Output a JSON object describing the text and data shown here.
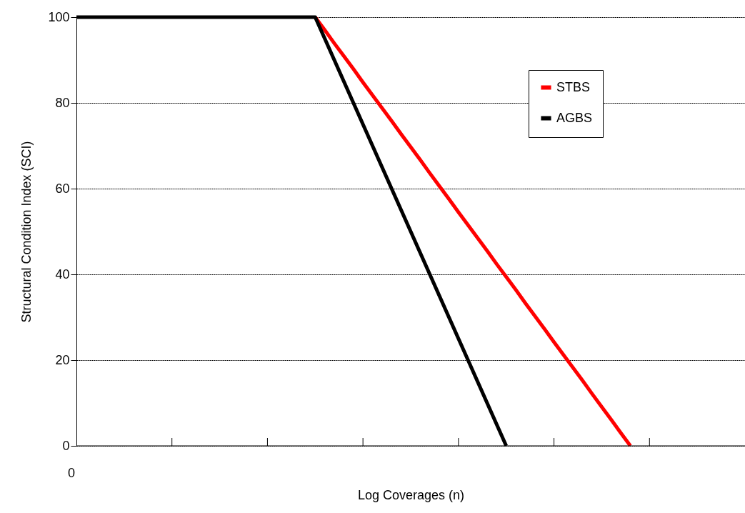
{
  "chart_data": {
    "type": "line",
    "xlabel": "Log Coverages (n)",
    "ylabel": "Structural Condition Index (SCI)",
    "categories": [
      null,
      null,
      null,
      null,
      null,
      null,
      null,
      null,
      null,
      null,
      null,
      null,
      null,
      null,
      null,
      null,
      null,
      null,
      null,
      null,
      null,
      null,
      null,
      null,
      null,
      null,
      null,
      null,
      null,
      null,
      null,
      null,
      null,
      null,
      null,
      null,
      null,
      null,
      null,
      null,
      null,
      null,
      null,
      null,
      null,
      null,
      null,
      null,
      null,
      null,
      null,
      null,
      null,
      null,
      null,
      null,
      null,
      null,
      null,
      null,
      null,
      null,
      null,
      null,
      null,
      null,
      null,
      null,
      null,
      null,
      null
    ],
    "series": [
      {
        "name": "STBS",
        "color": "#ff0000",
        "values": [
          null,
          null,
          null,
          null,
          null,
          null,
          null,
          null,
          null,
          null,
          null,
          null,
          null,
          null,
          null,
          null,
          null,
          null,
          null,
          null,
          null,
          null,
          null,
          null,
          null,
          100,
          97,
          93.9,
          90.9,
          87.9,
          84.8,
          81.8,
          78.8,
          75.8,
          72.7,
          69.7,
          66.7,
          63.6,
          60.6,
          57.6,
          54.5,
          51.5,
          48.5,
          45.5,
          42.4,
          39.4,
          36.4,
          33.3,
          30.3,
          27.3,
          24.2,
          21.2,
          18.2,
          15.2,
          12.1,
          9.1,
          6.1,
          3,
          0,
          null,
          null,
          null,
          null,
          null,
          null,
          null,
          null,
          null,
          null,
          null,
          null
        ]
      },
      {
        "name": "AGBS",
        "color": "#000000",
        "values": [
          100,
          100,
          100,
          100,
          100,
          100,
          100,
          100,
          100,
          100,
          100,
          100,
          100,
          100,
          100,
          100,
          100,
          100,
          100,
          100,
          100,
          100,
          100,
          100,
          100,
          100,
          95,
          90,
          85,
          80,
          75,
          70,
          65,
          60,
          55,
          50,
          45,
          40,
          35,
          30,
          25,
          20,
          15,
          10,
          5,
          0,
          null,
          null,
          null,
          null,
          null,
          null,
          null,
          null,
          null,
          null,
          null,
          null,
          null,
          null,
          null,
          null,
          null,
          null,
          null,
          null,
          null,
          null,
          null,
          null,
          null
        ]
      }
    ],
    "annotations": [
      "0"
    ],
    "ylim": [
      0,
      100
    ],
    "yticks": [
      0,
      20,
      40,
      60,
      80,
      100
    ],
    "grid": "y",
    "legend": "top right",
    "marker": "none",
    "line_style": "solid"
  }
}
